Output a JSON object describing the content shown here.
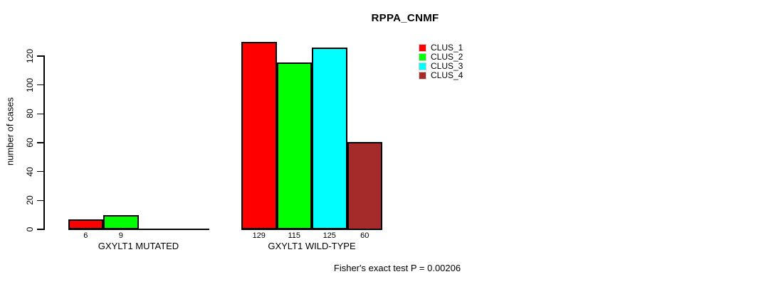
{
  "chart_data": {
    "type": "bar",
    "title": "RPPA_CNMF",
    "ylabel": "number of cases",
    "xlabel": "",
    "ylim": [
      0,
      120
    ],
    "yticks": [
      0,
      20,
      40,
      60,
      80,
      100,
      120
    ],
    "categories": [
      "GXYLT1 MUTATED",
      "GXYLT1 WILD-TYPE"
    ],
    "series": [
      {
        "name": "CLUS_1",
        "color": "#FF0000",
        "values": [
          6,
          129
        ]
      },
      {
        "name": "CLUS_2",
        "color": "#00FF00",
        "values": [
          9,
          115
        ]
      },
      {
        "name": "CLUS_3",
        "color": "#00FFFF",
        "values": [
          0,
          125
        ]
      },
      {
        "name": "CLUS_4",
        "color": "#A52A2A",
        "values": [
          0,
          60
        ]
      }
    ],
    "bar_border_color": "#000000",
    "grid": false,
    "legend_position": "top-right",
    "annotation": "Fisher's exact test P = 0.00206"
  }
}
